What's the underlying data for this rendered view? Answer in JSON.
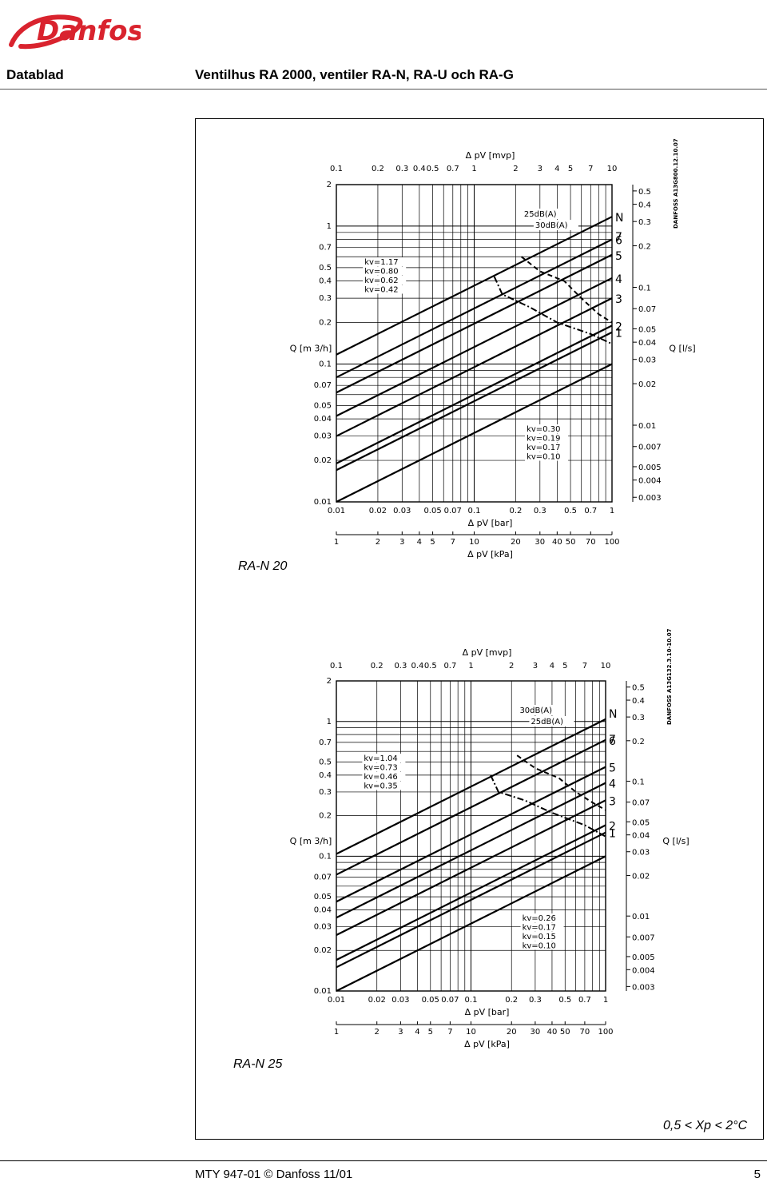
{
  "header": {
    "brand": "Danfoss",
    "section": "Datablad",
    "title": "Ventilhus RA 2000, ventiler RA-N, RA-U och RA-G"
  },
  "footer": {
    "doc": "MTY 947-01 ©   Danfoss 11/01",
    "page": "5"
  },
  "note": "0,5 < Xp < 2°C",
  "colors": {
    "line": "#000000",
    "grid": "#000000",
    "background": "#ffffff"
  },
  "chart_data": [
    {
      "type": "line",
      "caption": "RA-N 20",
      "stamp": "DANFOSS A13G800.12.10.07",
      "top_axis_label": "Δ pV [mvp]",
      "top_ticks": [
        "0.1",
        "0.2",
        "0.3",
        "0.4",
        "0.5",
        "0.7",
        "1",
        "2",
        "3",
        "4",
        "5",
        "7",
        "10"
      ],
      "bottom_axis_label": "Δ pV [bar]",
      "bottom_ticks": [
        "0.01",
        "0.02",
        "0.03",
        "0.05",
        "0.07",
        "0.1",
        "0.2",
        "0.3",
        "0.5",
        "0.7",
        "1"
      ],
      "kpa_axis_label": "Δ pV [kPa]",
      "kpa_ticks": [
        "1",
        "2",
        "3",
        "4",
        "5",
        "7",
        "10",
        "20",
        "30",
        "40",
        "50",
        "70",
        "100"
      ],
      "ylabel_left": "Q [m 3/h]",
      "yticks_left": [
        "2",
        "1",
        "0.7",
        "0.5",
        "0.4",
        "0.3",
        "0.2",
        "0.1",
        "0.07",
        "0.05",
        "0.04",
        "0.03",
        "0.02",
        "0.01"
      ],
      "ylabel_right": "Q [l/s]",
      "yticks_right": [
        "0.5",
        "0.4",
        "0.3",
        "0.2",
        "0.1",
        "0.07",
        "0.05",
        "0.04",
        "0.03",
        "0.02",
        "0.01",
        "0.007",
        "0.005",
        "0.004",
        "0.003"
      ],
      "presetting_label": "N",
      "presettings": [
        "7",
        "6",
        "5",
        "4",
        "3",
        "2",
        "1"
      ],
      "noise_labels": [
        "25dB(A)",
        "30dB(A)"
      ],
      "kv_labels_upper": [
        "kv=1.17",
        "kv=0.80",
        "kv=0.62",
        "kv=0.42"
      ],
      "kv_labels_lower": [
        "kv=0.30",
        "kv=0.19",
        "kv=0.17",
        "kv=0.10"
      ],
      "series": [
        {
          "name": "kv=1.17",
          "kv": 1.17
        },
        {
          "name": "kv=0.80",
          "kv": 0.8
        },
        {
          "name": "kv=0.62",
          "kv": 0.62
        },
        {
          "name": "kv=0.42",
          "kv": 0.42
        },
        {
          "name": "kv=0.30",
          "kv": 0.3
        },
        {
          "name": "kv=0.19",
          "kv": 0.19
        },
        {
          "name": "kv=0.17",
          "kv": 0.17
        },
        {
          "name": "kv=0.10",
          "kv": 0.1
        }
      ],
      "noise_curves": [
        {
          "name": "25dB(A)",
          "points": [
            [
              0.14,
              0.43
            ],
            [
              0.16,
              0.32
            ],
            [
              0.25,
              0.26
            ],
            [
              0.4,
              0.2
            ],
            [
              0.7,
              0.165
            ],
            [
              1.0,
              0.14
            ]
          ]
        },
        {
          "name": "30dB(A)",
          "points": [
            [
              0.22,
              0.6
            ],
            [
              0.3,
              0.47
            ],
            [
              0.45,
              0.4
            ],
            [
              0.6,
              0.3
            ],
            [
              0.8,
              0.23
            ],
            [
              1.0,
              0.2
            ]
          ]
        }
      ],
      "xlim_bar": [
        0.01,
        1
      ],
      "ylim_m3h": [
        0.01,
        2
      ],
      "scale": "log-log",
      "grid": true
    },
    {
      "type": "line",
      "caption": "RA-N 25",
      "stamp": "DANFOSS A13G132.3.10-10.07",
      "top_axis_label": "Δ pV [mvp]",
      "top_ticks": [
        "0.1",
        "0.2",
        "0.3",
        "0.4",
        "0.5",
        "0.7",
        "1",
        "2",
        "3",
        "4",
        "5",
        "7",
        "10"
      ],
      "bottom_axis_label": "Δ pV [bar]",
      "bottom_ticks": [
        "0.01",
        "0.02",
        "0.03",
        "0.05",
        "0.07",
        "0.1",
        "0.2",
        "0.3",
        "0.5",
        "0.7",
        "1"
      ],
      "kpa_axis_label": "Δ pV [kPa]",
      "kpa_ticks": [
        "1",
        "2",
        "3",
        "4",
        "5",
        "7",
        "10",
        "20",
        "30",
        "40",
        "50",
        "70",
        "100"
      ],
      "ylabel_left": "Q [m 3/h]",
      "yticks_left": [
        "2",
        "1",
        "0.7",
        "0.5",
        "0.4",
        "0.3",
        "0.2",
        "0.1",
        "0.07",
        "0.05",
        "0.04",
        "0.03",
        "0.02",
        "0.01"
      ],
      "ylabel_right": "Q [l/s]",
      "yticks_right": [
        "0.5",
        "0.4",
        "0.3",
        "0.2",
        "0.1",
        "0.07",
        "0.05",
        "0.04",
        "0.03",
        "0.02",
        "0.01",
        "0.007",
        "0.005",
        "0.004",
        "0.003"
      ],
      "presetting_label": "N",
      "presettings": [
        "7",
        "6",
        "5",
        "4",
        "3",
        "2",
        "1"
      ],
      "noise_labels": [
        "30dB(A)",
        "25dB(A)"
      ],
      "kv_labels_upper": [
        "kv=1.04",
        "kv=0.73",
        "kv=0.46",
        "kv=0.35"
      ],
      "kv_labels_lower": [
        "kv=0.26",
        "kv=0.17",
        "kv=0.15",
        "kv=0.10"
      ],
      "series": [
        {
          "name": "kv=1.04",
          "kv": 1.04
        },
        {
          "name": "kv=0.73",
          "kv": 0.73
        },
        {
          "name": "kv=0.46",
          "kv": 0.46
        },
        {
          "name": "kv=0.35",
          "kv": 0.35
        },
        {
          "name": "kv=0.26",
          "kv": 0.26
        },
        {
          "name": "kv=0.17",
          "kv": 0.17
        },
        {
          "name": "kv=0.15",
          "kv": 0.15
        },
        {
          "name": "kv=0.10",
          "kv": 0.1
        }
      ],
      "noise_curves": [
        {
          "name": "25dB(A)",
          "points": [
            [
              0.14,
              0.4
            ],
            [
              0.16,
              0.3
            ],
            [
              0.25,
              0.26
            ],
            [
              0.4,
              0.21
            ],
            [
              0.7,
              0.17
            ],
            [
              1.0,
              0.14
            ]
          ]
        },
        {
          "name": "30dB(A)",
          "points": [
            [
              0.22,
              0.56
            ],
            [
              0.3,
              0.45
            ],
            [
              0.45,
              0.38
            ],
            [
              0.6,
              0.3
            ],
            [
              0.8,
              0.25
            ],
            [
              1.0,
              0.22
            ]
          ]
        }
      ],
      "xlim_bar": [
        0.01,
        1
      ],
      "ylim_m3h": [
        0.01,
        2
      ],
      "scale": "log-log",
      "grid": true
    }
  ]
}
